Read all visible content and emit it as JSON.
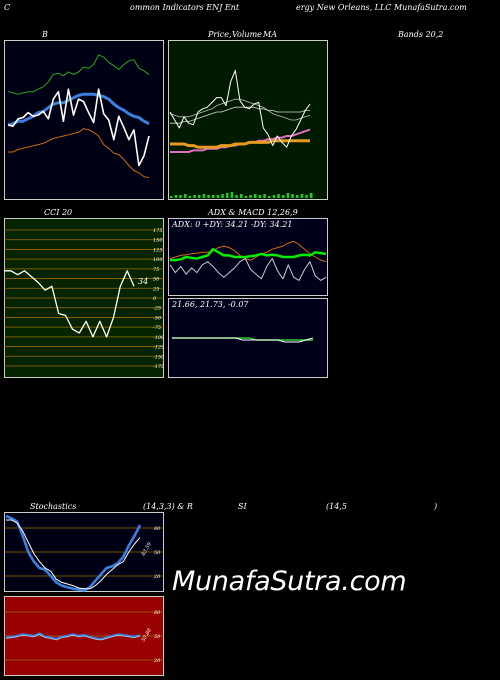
{
  "header": {
    "left": "C",
    "mid1": "ommon  Indicators ENJ Ent",
    "mid2": "ergy New Orleans, LLC MunafaSutra.com"
  },
  "colors": {
    "bg": "#000000",
    "bb_bg": "#000014",
    "ma_bg": "#001a00",
    "cci_bg": "#062400",
    "macd_bg": "#00001a",
    "rsi_bg": "#990000",
    "line_white": "#ffffff",
    "line_green": "#22aa22",
    "line_blue": "#3b7fe0",
    "line_orange": "#d06a10",
    "grid_orange": "#9b6a00"
  },
  "panels": {
    "bb": {
      "title": "B"
    },
    "ma": {
      "title1": "Price,",
      "title2": "Volume",
      "title3": "MA"
    },
    "bands": {
      "title": "Bands 20,2"
    },
    "cci": {
      "title": "CCI 20",
      "value_label": "34"
    },
    "adx": {
      "title": "ADX  & MACD 12,26,9",
      "stats": "ADX: 0  +DY: 34.21 -DY: 34.21"
    },
    "macd": {
      "stats": "21.66,  21.73,  -0.07"
    },
    "stoch": {
      "title1": "Stochastics",
      "title2": "(14,3,3) & R",
      "title3": "SI",
      "title4": "(14,5",
      "title5": ")",
      "last_label": "83.59"
    },
    "rsi": {
      "last_label": "50.88"
    }
  },
  "watermark": "MunafaSutra.com",
  "chart_data": [
    {
      "type": "line",
      "name": "bollinger",
      "series": [
        {
          "role": "price",
          "values": [
            61,
            60,
            66,
            67,
            71,
            68,
            69,
            72,
            66,
            82,
            88,
            64,
            90,
            69,
            82,
            80,
            71,
            63,
            90,
            70,
            65,
            49,
            68,
            59,
            49,
            57,
            28,
            36,
            52
          ]
        },
        {
          "role": "upper",
          "values": [
            88,
            87,
            86,
            87,
            88,
            88,
            90,
            92,
            96,
            102,
            103,
            101,
            104,
            102,
            104,
            108,
            107,
            110,
            118,
            116,
            112,
            109,
            106,
            110,
            113,
            114,
            107,
            105,
            102
          ]
        },
        {
          "role": "middle",
          "values": [
            61,
            62,
            64,
            64,
            66,
            68,
            71,
            72,
            75,
            78,
            79,
            79,
            81,
            83,
            85,
            86,
            86,
            86,
            85,
            84,
            82,
            78,
            75,
            73,
            70,
            68,
            67,
            64,
            62
          ]
        },
        {
          "role": "lower",
          "values": [
            39,
            39,
            41,
            42,
            43,
            44,
            45,
            46,
            48,
            50,
            51,
            52,
            53,
            54,
            55,
            58,
            57,
            55,
            52,
            45,
            42,
            38,
            37,
            33,
            28,
            24,
            22,
            19,
            18
          ]
        }
      ]
    },
    {
      "type": "line",
      "name": "price_ma",
      "series": [
        {
          "role": "price",
          "values": [
            55,
            50,
            45,
            52,
            48,
            47,
            55,
            57,
            58,
            61,
            64,
            64,
            59,
            74,
            81,
            62,
            58,
            57,
            60,
            61,
            45,
            41,
            34,
            40,
            36,
            33,
            40,
            44,
            50,
            56,
            60
          ]
        },
        {
          "role": "ma_short",
          "values": [
            54,
            53,
            52,
            52,
            52,
            53,
            54,
            55,
            56,
            57,
            59,
            60,
            61,
            62,
            63,
            63,
            62,
            61,
            60,
            59,
            58,
            56,
            54,
            53,
            52,
            51,
            50,
            50,
            51,
            52,
            53
          ]
        },
        {
          "role": "ma_mid",
          "values": [
            48,
            48,
            48,
            49,
            49,
            50,
            51,
            52,
            53,
            54,
            55,
            55,
            56,
            57,
            58,
            58,
            58,
            58,
            58,
            57,
            57,
            56,
            56,
            55,
            55,
            55,
            55,
            55,
            55,
            56,
            56
          ]
        },
        {
          "role": "ma_orange",
          "values": [
            35,
            35,
            35,
            35,
            34,
            34,
            33,
            33,
            33,
            33,
            33,
            34,
            34,
            34,
            35,
            35,
            35,
            36,
            36,
            36,
            36,
            36,
            37,
            37,
            37,
            37,
            37,
            37,
            37,
            37,
            37
          ]
        },
        {
          "role": "ma_long",
          "values": [
            30,
            30,
            30,
            30,
            30,
            31,
            31,
            31,
            32,
            32,
            32,
            33,
            33,
            34,
            34,
            35,
            35,
            36,
            36,
            37,
            37,
            38,
            38,
            39,
            39,
            40,
            40,
            41,
            42,
            43,
            44
          ]
        },
        {
          "role": "volume",
          "values": [
            2,
            3,
            3,
            4,
            2,
            3,
            3,
            4,
            3,
            3,
            3,
            4,
            5,
            6,
            3,
            4,
            2,
            3,
            4,
            3,
            4,
            2,
            3,
            4,
            3,
            5,
            4,
            3,
            4,
            3,
            5
          ]
        }
      ]
    },
    {
      "type": "line",
      "name": "cci",
      "y_ticks": [
        175,
        150,
        125,
        100,
        75,
        50,
        25,
        0,
        -25,
        -50,
        -75,
        -100,
        -125,
        -150,
        -175
      ],
      "ylim": [
        -175,
        175
      ],
      "series": [
        {
          "role": "cci",
          "values": [
            70,
            70,
            60,
            70,
            55,
            40,
            20,
            30,
            -40,
            -45,
            -80,
            -90,
            -60,
            -100,
            -60,
            -100,
            -50,
            30,
            70,
            30
          ]
        }
      ]
    },
    {
      "type": "line",
      "name": "adx",
      "series": [
        {
          "role": "plus_di",
          "values": [
            46,
            46,
            47,
            50,
            49,
            48,
            50,
            52,
            60,
            56,
            52,
            52,
            50,
            50,
            50,
            51,
            52,
            54,
            52,
            53,
            52,
            50,
            50,
            50,
            52,
            53,
            52,
            56,
            55,
            54
          ]
        },
        {
          "role": "minus_di",
          "values": [
            48,
            50,
            52,
            53,
            54,
            55,
            56,
            56,
            58,
            62,
            64,
            62,
            58,
            52,
            48,
            46,
            50,
            54,
            56,
            60,
            62,
            64,
            68,
            70,
            66,
            60,
            54,
            50,
            46,
            44
          ]
        },
        {
          "role": "adx",
          "values": [
            40,
            30,
            38,
            28,
            36,
            30,
            40,
            44,
            38,
            30,
            24,
            30,
            36,
            44,
            48,
            34,
            28,
            22,
            38,
            48,
            32,
            22,
            40,
            24,
            20,
            34,
            44,
            26,
            20,
            24
          ]
        }
      ]
    },
    {
      "type": "line",
      "name": "macd",
      "stats": [
        "21.66",
        "21.73",
        "-0.07"
      ],
      "series": [
        {
          "role": "macd",
          "values": [
            0,
            0,
            0,
            0,
            0,
            0,
            0,
            0,
            0,
            0,
            -1,
            -1,
            -1,
            -1,
            -1,
            -1,
            -2,
            -2,
            -2,
            -1,
            0
          ]
        },
        {
          "role": "signal",
          "values": [
            0,
            0,
            0,
            0,
            0,
            0,
            0,
            0,
            0,
            0,
            0,
            0,
            -1,
            -1,
            -1,
            -1,
            -1,
            -1,
            -1,
            -1,
            -1
          ]
        }
      ]
    },
    {
      "type": "line",
      "name": "stochastics",
      "y_ticks": [
        80,
        50,
        20
      ],
      "ylim": [
        0,
        100
      ],
      "series": [
        {
          "role": "k",
          "values": [
            95,
            92,
            88,
            70,
            50,
            38,
            30,
            28,
            20,
            12,
            8,
            6,
            4,
            3,
            2,
            6,
            14,
            22,
            30,
            32,
            36,
            44,
            58,
            70,
            83.59
          ]
        },
        {
          "role": "d",
          "values": [
            90,
            90,
            86,
            76,
            62,
            48,
            38,
            30,
            26,
            16,
            12,
            10,
            8,
            5,
            4,
            4,
            8,
            14,
            22,
            28,
            34,
            38,
            50,
            60,
            68
          ]
        }
      ]
    },
    {
      "type": "line",
      "name": "rsi",
      "y_ticks": [
        80,
        50,
        20
      ],
      "ylim": [
        0,
        100
      ],
      "series": [
        {
          "role": "rsi",
          "values": [
            48,
            49,
            50,
            52,
            51,
            50,
            53,
            49,
            48,
            46,
            49,
            50,
            52,
            50,
            51,
            49,
            47,
            46,
            48,
            50,
            52,
            51,
            50,
            49,
            50.88
          ]
        }
      ]
    }
  ]
}
